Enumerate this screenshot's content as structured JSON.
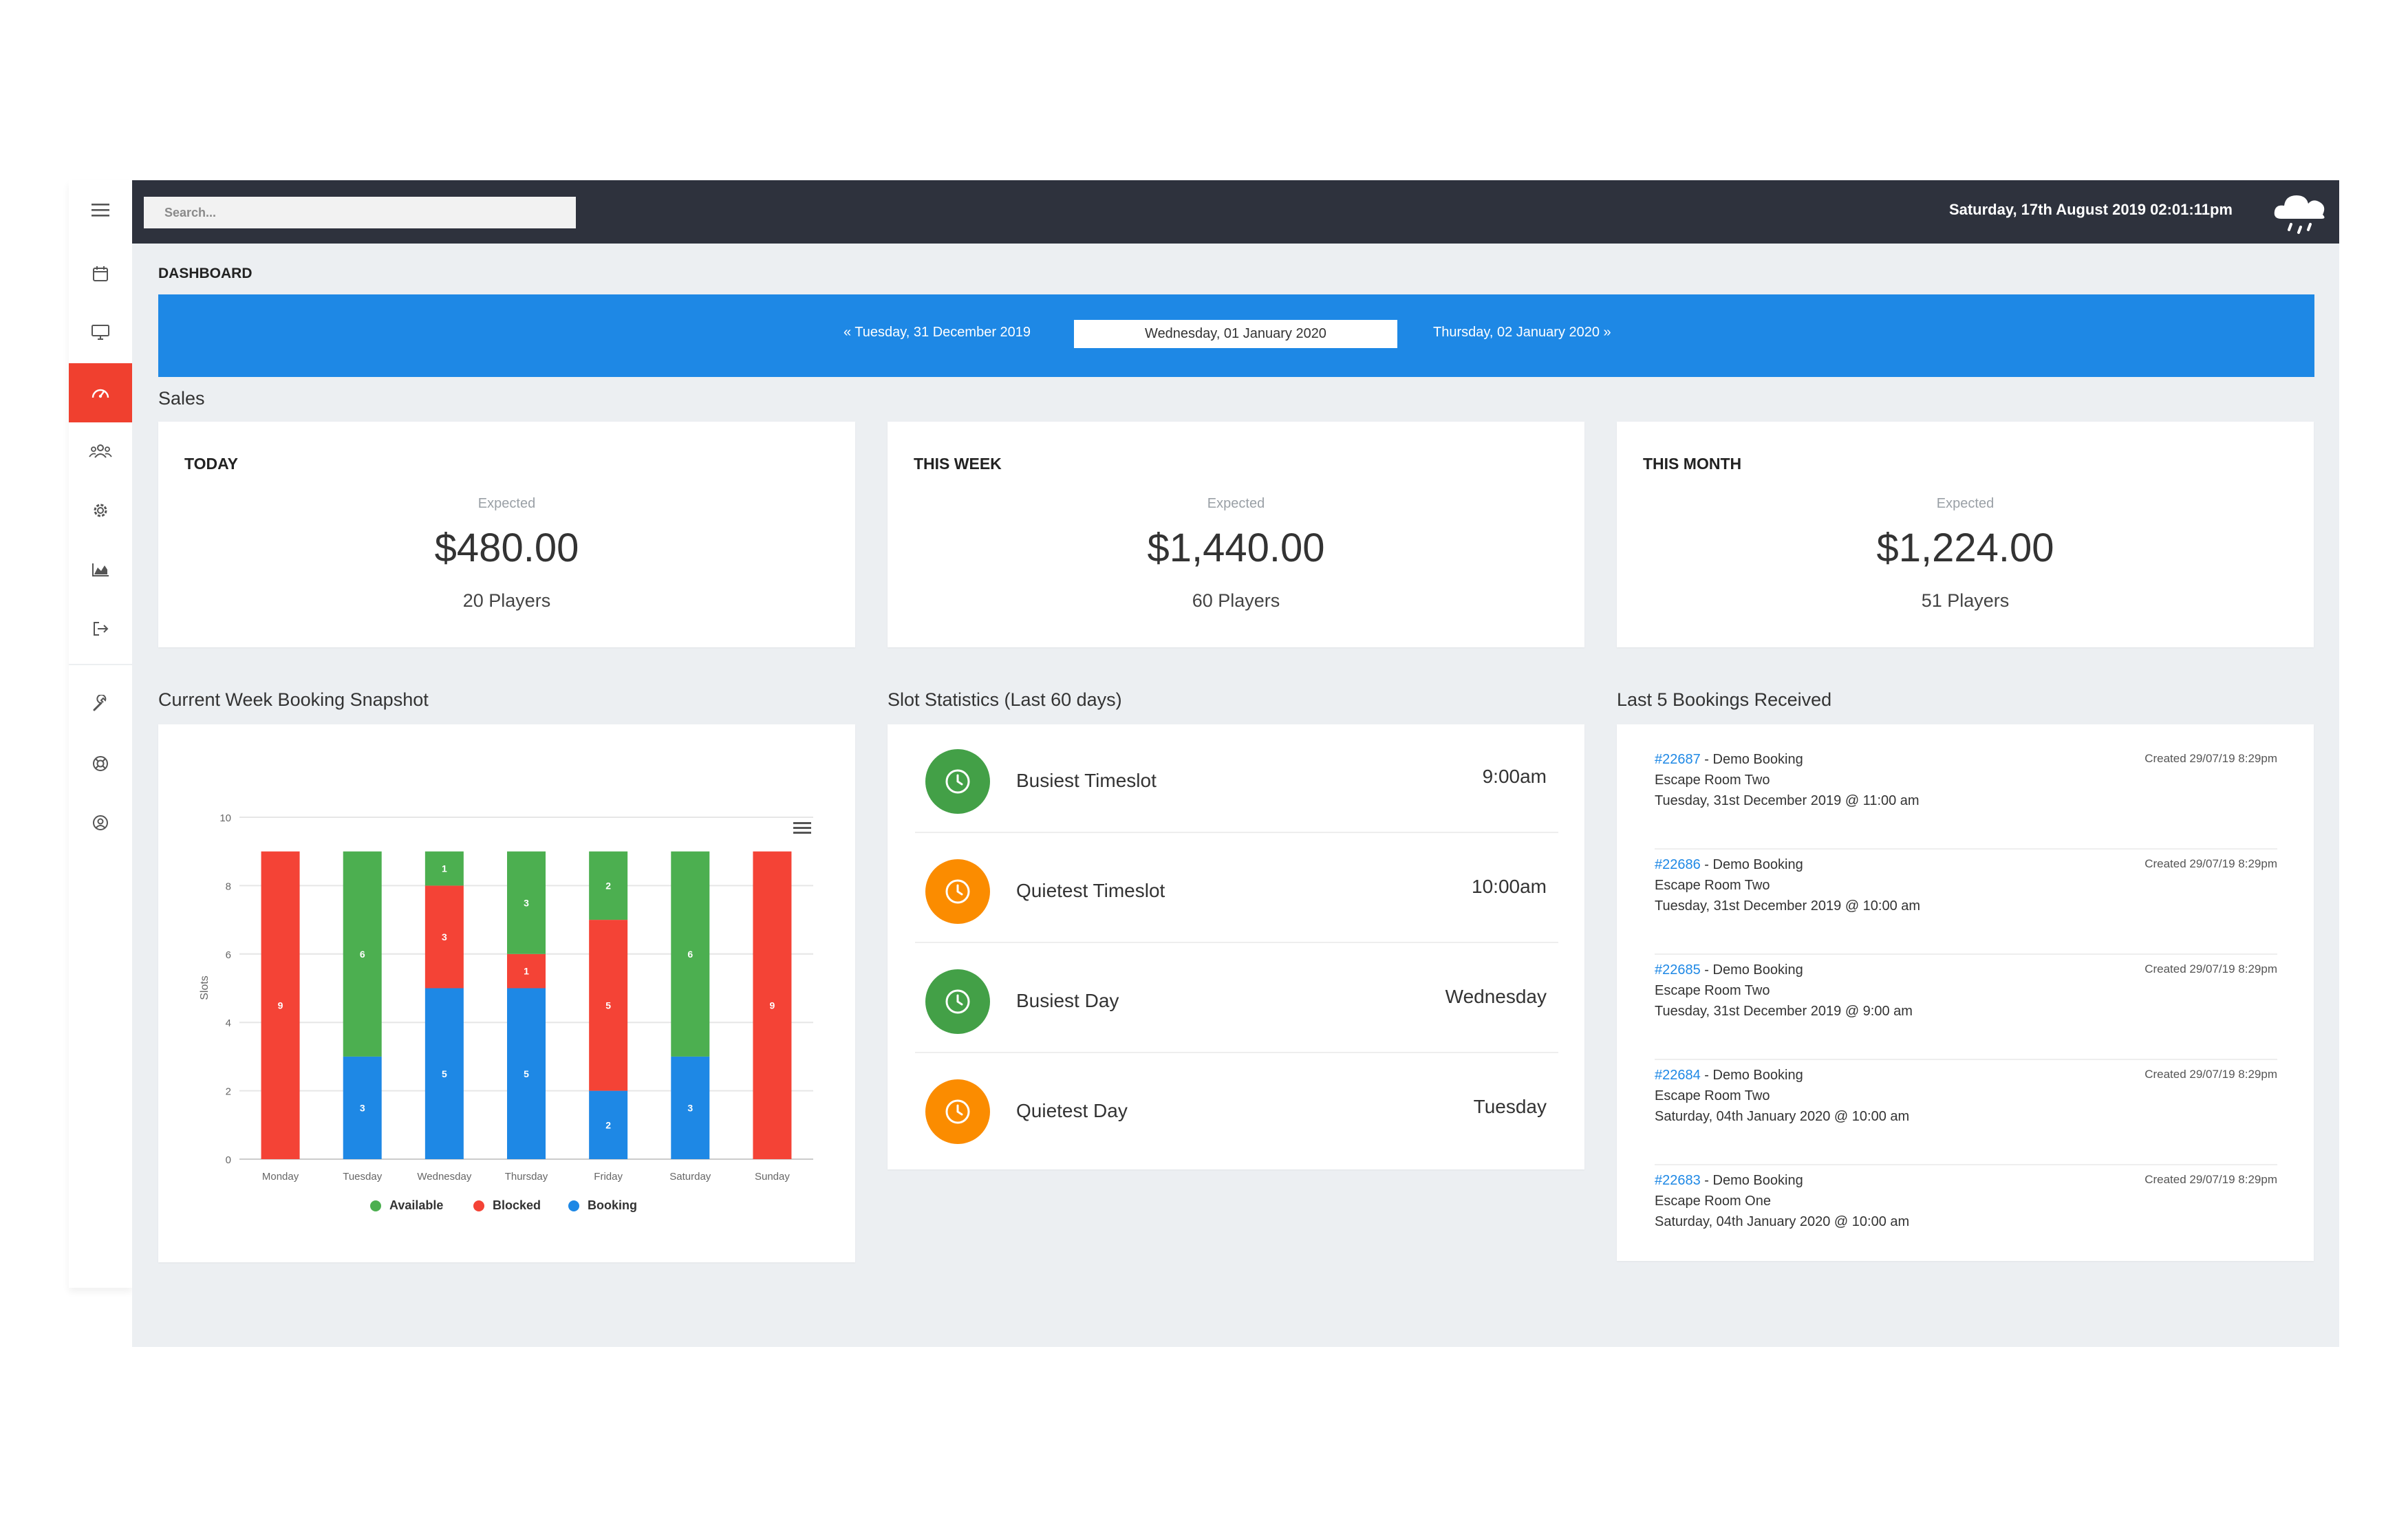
{
  "topbar": {
    "search_placeholder": "Search...",
    "datetime": "Saturday, 17th August 2019 02:01:11pm",
    "weather_icon": "rain-cloud-icon"
  },
  "sidebar": {
    "items": [
      {
        "name": "menu",
        "icon": "hamburger-menu-icon",
        "active": false
      },
      {
        "name": "calendar",
        "icon": "calendar-icon",
        "active": false
      },
      {
        "name": "monitor",
        "icon": "monitor-icon",
        "active": false
      },
      {
        "name": "dashboard",
        "icon": "dashboard-gauge-icon",
        "active": true
      },
      {
        "name": "users",
        "icon": "users-icon",
        "active": false
      },
      {
        "name": "settings",
        "icon": "gear-icon",
        "active": false
      },
      {
        "name": "reports",
        "icon": "area-chart-icon",
        "active": false
      },
      {
        "name": "logout",
        "icon": "sign-out-icon",
        "active": false
      },
      {
        "name": "tools",
        "icon": "wrench-icon",
        "active": false
      },
      {
        "name": "support",
        "icon": "life-ring-icon",
        "active": false
      },
      {
        "name": "account",
        "icon": "user-circle-icon",
        "active": false
      }
    ],
    "active_color": "#f0402f"
  },
  "page": {
    "title": "DASHBOARD",
    "date_nav": {
      "prev": "« Tuesday, 31 December 2019",
      "current": "Wednesday, 01 January 2020",
      "next": "Thursday, 02 January 2020 »"
    },
    "sales_title": "Sales",
    "sales": [
      {
        "label": "TODAY",
        "expected_label": "Expected",
        "amount": "$480.00",
        "players": "20 Players"
      },
      {
        "label": "THIS WEEK",
        "expected_label": "Expected",
        "amount": "$1,440.00",
        "players": "60 Players"
      },
      {
        "label": "THIS MONTH",
        "expected_label": "Expected",
        "amount": "$1,224.00",
        "players": "51 Players"
      }
    ],
    "snapshot_title": "Current Week Booking Snapshot",
    "stats_title": "Slot Statistics (Last 60 days)",
    "bookings_title": "Last 5 Bookings Received"
  },
  "slot_stats": [
    {
      "label": "Busiest Timeslot",
      "value": "9:00am",
      "color": "#43a047",
      "icon": "clock-icon"
    },
    {
      "label": "Quietest Timeslot",
      "value": "10:00am",
      "color": "#fb8c00",
      "icon": "clock-icon"
    },
    {
      "label": "Busiest Day",
      "value": "Wednesday",
      "color": "#43a047",
      "icon": "clock-icon"
    },
    {
      "label": "Quietest Day",
      "value": "Tuesday",
      "color": "#fb8c00",
      "icon": "clock-icon"
    }
  ],
  "bookings": [
    {
      "id": "#22687",
      "title": " - Demo Booking",
      "room": "Escape Room Two",
      "when": "Tuesday, 31st December 2019 @ 11:00 am",
      "created": "Created 29/07/19 8:29pm"
    },
    {
      "id": "#22686",
      "title": " - Demo Booking",
      "room": "Escape Room Two",
      "when": "Tuesday, 31st December 2019 @ 10:00 am",
      "created": "Created 29/07/19 8:29pm"
    },
    {
      "id": "#22685",
      "title": " - Demo Booking",
      "room": "Escape Room Two",
      "when": "Tuesday, 31st December 2019 @ 9:00 am",
      "created": "Created 29/07/19 8:29pm"
    },
    {
      "id": "#22684",
      "title": " - Demo Booking",
      "room": "Escape Room Two",
      "when": "Saturday, 04th January 2020 @ 10:00 am",
      "created": "Created 29/07/19 8:29pm"
    },
    {
      "id": "#22683",
      "title": " - Demo Booking",
      "room": "Escape Room One",
      "when": "Saturday, 04th January 2020 @ 10:00 am",
      "created": "Created 29/07/19 8:29pm"
    }
  ],
  "chart_data": {
    "type": "bar",
    "stacked": true,
    "categories": [
      "Monday",
      "Tuesday",
      "Wednesday",
      "Thursday",
      "Friday",
      "Saturday",
      "Sunday"
    ],
    "series": [
      {
        "name": "Booking",
        "color": "#1e88e5",
        "values": [
          0,
          3,
          5,
          5,
          2,
          3,
          0
        ]
      },
      {
        "name": "Blocked",
        "color": "#f44336",
        "values": [
          9,
          0,
          3,
          1,
          5,
          0,
          9
        ]
      },
      {
        "name": "Available",
        "color": "#4caf50",
        "values": [
          0,
          6,
          1,
          3,
          2,
          6,
          0
        ]
      }
    ],
    "legend": [
      "Available",
      "Blocked",
      "Booking"
    ],
    "ylabel": "Slots",
    "yticks": [
      "0",
      "2",
      "4",
      "6",
      "8",
      "10"
    ],
    "ylim": [
      0,
      10
    ],
    "grid": true,
    "legend_position": "bottom",
    "menu_icon": "chart-menu-icon"
  }
}
